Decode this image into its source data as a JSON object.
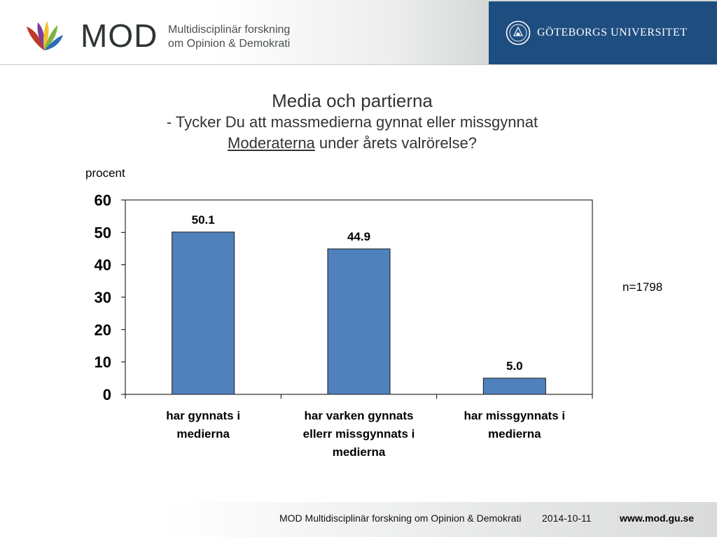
{
  "header": {
    "brand": "MOD",
    "tagline_line1": "Multidisciplinär forskning",
    "tagline_line2": "om Opinion & Demokrati",
    "university": "GÖTEBORGS UNIVERSITET"
  },
  "colors": {
    "bar": "#4f81bd",
    "university_blue": "#1e4d80",
    "flower_red": "#c0392b",
    "flower_purple": "#7b3f98",
    "flower_yellow": "#f2c12e",
    "flower_green": "#7cb342",
    "flower_blue": "#2d6db5"
  },
  "icons": {
    "logo": "mod-flower-logo",
    "university": "university-seal-icon"
  },
  "chart_data": {
    "type": "bar",
    "title": "Media och partierna",
    "subtitle_prefix": "- Tycker Du att massmedierna gynnat eller missgynnat",
    "subtitle_party": "Moderaterna",
    "subtitle_suffix": "under årets valrörelse?",
    "ylabel": "procent",
    "ylim": [
      0,
      60
    ],
    "yticks": [
      "0",
      "10",
      "20",
      "30",
      "40",
      "50",
      "60"
    ],
    "categories": [
      [
        "har gynnats i",
        "medierna"
      ],
      [
        "har varken gynnats",
        "ellerr missgynnats i",
        "medierna"
      ],
      [
        "har missgynnats i",
        "medierna"
      ]
    ],
    "values": [
      50.1,
      44.9,
      5.0
    ],
    "data_labels": [
      "50.1",
      "44.9",
      "5.0"
    ],
    "annotation": "n=1798",
    "grid": false,
    "legend": "none"
  },
  "footer": {
    "org": "MOD Multidisciplinär forskning om Opinion & Demokrati",
    "date": "2014-10-11",
    "url": "www.mod.gu.se"
  }
}
